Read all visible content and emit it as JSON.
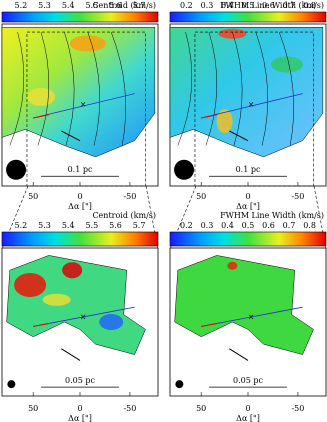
{
  "panels": [
    {
      "title": "Centroid (km/s)",
      "colorbar_ticks": [
        "5.2",
        "5.3",
        "5.4",
        "5.5",
        "5.6",
        "5.7"
      ],
      "scale_label": "0.1 pc",
      "x_ticks": [
        "50",
        "0",
        "-50"
      ],
      "x_label": "Δα [\"]"
    },
    {
      "title": "FWHM Line Width (km/s)",
      "colorbar_ticks": [
        "0.2",
        "0.3",
        "0.4",
        "0.5",
        "0.6",
        "0.7",
        "0.8"
      ],
      "scale_label": "0.1 pc",
      "x_ticks": [
        "50",
        "0",
        "-50"
      ],
      "x_label": "Δα [\"]"
    },
    {
      "title": "Centroid (km/s)",
      "colorbar_ticks": [
        "5.2",
        "5.3",
        "5.4",
        "5.5",
        "5.6",
        "5.7"
      ],
      "scale_label": "0.05 pc",
      "x_ticks": [
        "50",
        "0",
        "-50"
      ],
      "x_label": "Δα [\"]"
    },
    {
      "title": "FWHM Line Width (km/s)",
      "colorbar_ticks": [
        "0.2",
        "0.3",
        "0.4",
        "0.5",
        "0.6",
        "0.7",
        "0.8"
      ],
      "scale_label": "0.05 pc",
      "x_ticks": [
        "50",
        "0",
        "-50"
      ],
      "x_label": "Δα [\"]"
    }
  ]
}
